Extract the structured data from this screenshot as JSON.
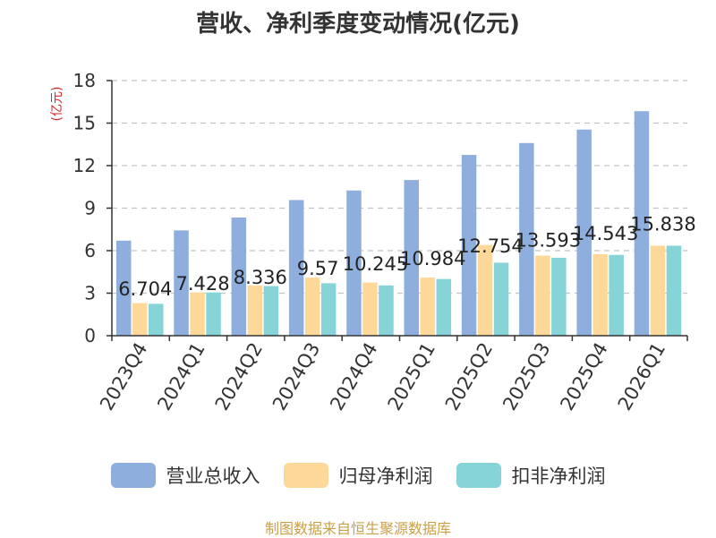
{
  "chart_data": {
    "type": "bar",
    "title": "营收、净利季度变动情况(亿元)",
    "ylabel": "(亿元)",
    "xlabel": "",
    "ylim": [
      0,
      18
    ],
    "yticks": [
      0,
      3,
      6,
      9,
      12,
      15,
      18
    ],
    "grid": true,
    "legend_position": "bottom",
    "categories": [
      "2023Q4",
      "2024Q1",
      "2024Q2",
      "2024Q3",
      "2024Q4",
      "2025Q1",
      "2025Q2",
      "2025Q3",
      "2025Q4",
      "2026Q1"
    ],
    "series": [
      {
        "name": "营业总收入",
        "color": "#8eaedd",
        "values": [
          6.704,
          7.428,
          8.336,
          9.57,
          10.245,
          10.984,
          12.754,
          13.593,
          14.543,
          15.838
        ],
        "data_labels": [
          "6.704",
          "7.428",
          "8.336",
          "9.57",
          "10.245",
          "10.984",
          "12.754",
          "13.593",
          "14.543",
          "15.838"
        ]
      },
      {
        "name": "归母净利润",
        "color": "#fdd898",
        "values": [
          2.3,
          3.05,
          3.55,
          4.1,
          3.75,
          4.1,
          6.4,
          5.65,
          5.75,
          6.35
        ]
      },
      {
        "name": "扣非净利润",
        "color": "#86d4d8",
        "values": [
          2.25,
          3.05,
          3.5,
          3.7,
          3.55,
          4.0,
          5.15,
          5.5,
          5.7,
          6.35
        ]
      }
    ],
    "source": "制图数据来自恒生聚源数据库"
  }
}
